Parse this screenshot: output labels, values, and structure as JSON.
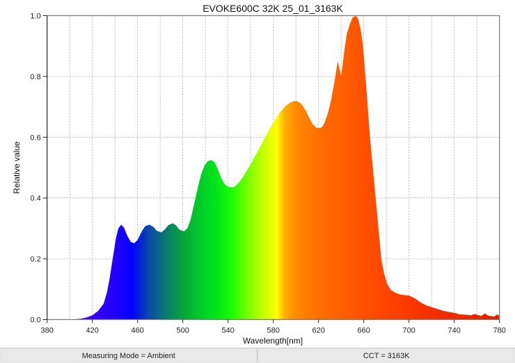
{
  "chart_data": {
    "type": "area",
    "title": "EVOKE600C 32K 25_01_3163K",
    "xlabel": "Wavelength[nm]",
    "ylabel": "Relative value",
    "xlim": [
      380,
      780
    ],
    "ylim": [
      0.0,
      1.0
    ],
    "grid": true,
    "legend": null,
    "x_ticks": [
      380,
      420,
      460,
      500,
      540,
      580,
      620,
      660,
      700,
      740,
      780
    ],
    "x_tick_labels": [
      "380",
      "420",
      "460",
      "500",
      "540",
      "580",
      "620",
      "660",
      "700",
      "740",
      "780"
    ],
    "x_minor_grid_step": 20,
    "y_ticks": [
      0.0,
      0.2,
      0.4,
      0.6,
      0.8,
      1.0
    ],
    "y_tick_labels": [
      "0.0",
      "0.2",
      "0.4",
      "0.6",
      "0.8",
      "1.0"
    ],
    "fill": "visible-spectrum gradient (blue → green → yellow → orange → red)",
    "x": [
      380,
      400,
      405,
      410,
      415,
      420,
      425,
      430,
      433,
      435,
      438,
      441,
      443,
      445.5,
      448,
      451,
      454,
      457,
      460,
      464,
      467,
      470.5,
      474,
      477,
      481,
      484,
      487,
      491,
      494,
      497,
      501,
      504,
      507,
      510,
      513,
      516,
      519,
      522,
      525,
      528,
      531,
      534,
      537,
      540,
      543,
      545.5,
      549,
      553,
      557,
      561,
      565,
      570,
      575,
      580,
      585,
      590,
      595,
      598,
      600.5,
      603,
      606,
      609,
      612,
      615,
      618,
      621,
      623,
      625,
      628,
      631,
      634,
      637,
      640,
      643,
      645,
      648,
      650,
      652.8,
      655,
      657,
      659,
      661.5,
      663.5,
      665.5,
      668,
      670.5,
      673,
      675.5,
      678,
      681,
      684,
      688,
      692,
      696,
      700,
      705,
      710,
      715,
      720,
      725,
      730,
      735,
      740,
      745,
      750,
      755,
      758,
      761,
      764,
      767,
      770,
      772,
      775,
      778,
      780
    ],
    "values": [
      0.0,
      0.0,
      0.001,
      0.003,
      0.007,
      0.014,
      0.028,
      0.052,
      0.09,
      0.13,
      0.2,
      0.27,
      0.3,
      0.312,
      0.302,
      0.275,
      0.255,
      0.251,
      0.262,
      0.292,
      0.308,
      0.312,
      0.305,
      0.292,
      0.287,
      0.296,
      0.31,
      0.317,
      0.31,
      0.296,
      0.29,
      0.3,
      0.33,
      0.38,
      0.43,
      0.475,
      0.505,
      0.521,
      0.525,
      0.518,
      0.495,
      0.465,
      0.445,
      0.437,
      0.435,
      0.436,
      0.448,
      0.468,
      0.492,
      0.518,
      0.545,
      0.58,
      0.615,
      0.648,
      0.677,
      0.7,
      0.714,
      0.718,
      0.719,
      0.715,
      0.704,
      0.685,
      0.662,
      0.642,
      0.632,
      0.63,
      0.633,
      0.645,
      0.675,
      0.72,
      0.78,
      0.85,
      0.8,
      0.89,
      0.94,
      0.975,
      0.993,
      1.0,
      0.99,
      0.96,
      0.91,
      0.8,
      0.7,
      0.6,
      0.5,
      0.4,
      0.3,
      0.2,
      0.15,
      0.115,
      0.097,
      0.088,
      0.083,
      0.08,
      0.079,
      0.07,
      0.057,
      0.047,
      0.041,
      0.035,
      0.029,
      0.025,
      0.022,
      0.017,
      0.016,
      0.014,
      0.018,
      0.015,
      0.012,
      0.02,
      0.013,
      0.012,
      0.009,
      0.017,
      0.012
    ]
  },
  "status_bar": {
    "measuring_mode": "Measuring Mode = Ambient",
    "cct": "CCT = 3163K"
  }
}
